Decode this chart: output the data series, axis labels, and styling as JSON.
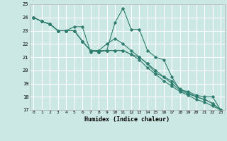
{
  "title": "",
  "xlabel": "Humidex (Indice chaleur)",
  "ylabel": "",
  "xlim": [
    -0.5,
    23.5
  ],
  "ylim": [
    17,
    25
  ],
  "yticks": [
    17,
    18,
    19,
    20,
    21,
    22,
    23,
    24,
    25
  ],
  "xticks": [
    0,
    1,
    2,
    3,
    4,
    5,
    6,
    7,
    8,
    9,
    10,
    11,
    12,
    13,
    14,
    15,
    16,
    17,
    18,
    19,
    20,
    21,
    22,
    23
  ],
  "bg_color": "#cce8e4",
  "grid_color": "#ffffff",
  "line_color": "#2e7d6e",
  "series1": [
    24.0,
    23.7,
    23.5,
    23.0,
    23.0,
    23.3,
    23.3,
    21.4,
    21.5,
    21.5,
    23.6,
    24.7,
    23.1,
    23.1,
    21.5,
    21.0,
    20.8,
    19.5,
    18.5,
    18.4,
    18.1,
    18.0,
    18.0,
    17.0
  ],
  "series2": [
    24.0,
    23.7,
    23.5,
    23.0,
    23.0,
    23.0,
    22.2,
    21.5,
    21.5,
    22.0,
    22.4,
    22.0,
    21.5,
    21.0,
    20.5,
    19.8,
    19.5,
    19.2,
    18.6,
    18.3,
    18.0,
    17.8,
    17.5,
    17.0
  ],
  "series3": [
    24.0,
    23.7,
    23.5,
    23.0,
    23.0,
    23.0,
    22.2,
    21.5,
    21.4,
    21.5,
    21.5,
    21.5,
    21.2,
    21.0,
    20.5,
    20.0,
    19.5,
    19.0,
    18.5,
    18.2,
    18.0,
    17.8,
    17.5,
    17.0
  ],
  "series4": [
    24.0,
    23.7,
    23.5,
    23.0,
    23.0,
    23.0,
    22.2,
    21.5,
    21.4,
    21.5,
    21.5,
    21.5,
    21.2,
    20.8,
    20.2,
    19.7,
    19.2,
    18.8,
    18.4,
    18.1,
    17.8,
    17.6,
    17.3,
    17.0
  ]
}
